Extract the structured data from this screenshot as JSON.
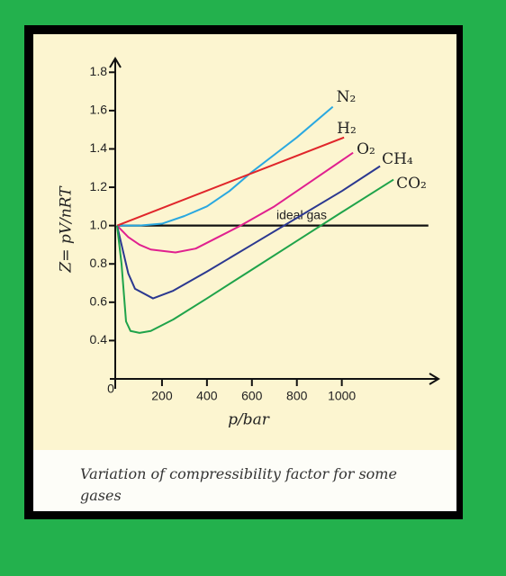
{
  "chart_data": {
    "type": "line",
    "caption": "Variation of compressibility factor for some gases",
    "xlabel": "p/bar",
    "ylabel": "Z= pV/nRT",
    "annotation": "ideal gas",
    "xlim": [
      0,
      1430
    ],
    "ylim": [
      0.2,
      1.9
    ],
    "xticks": [
      0,
      200,
      400,
      600,
      800,
      1000
    ],
    "yticks": [
      {
        "value": 0.4,
        "label": "0.4"
      },
      {
        "value": 0.6,
        "label": "0.6"
      },
      {
        "value": 0.8,
        "label": "0.8"
      },
      {
        "value": 1,
        "label": "1.0"
      },
      {
        "value": 1.2,
        "label": "1.2"
      },
      {
        "value": 1.4,
        "label": "1.4"
      },
      {
        "value": 1.6,
        "label": "1.6"
      },
      {
        "value": 1.8,
        "label": "1.8"
      }
    ],
    "ideal": {
      "x": [
        0,
        1385
      ],
      "values": [
        1,
        1
      ],
      "color": "#111111"
    },
    "series": [
      {
        "name": "N₂",
        "color": "#2aa8e0",
        "x": [
          0,
          100,
          200,
          300,
          400,
          500,
          600,
          700,
          800,
          960
        ],
        "values": [
          1,
          1,
          1.01,
          1.05,
          1.1,
          1.18,
          1.28,
          1.37,
          1.46,
          1.62
        ]
      },
      {
        "name": "H₂",
        "color": "#e0262b",
        "x": [
          0,
          1010
        ],
        "values": [
          1,
          1.46
        ]
      },
      {
        "name": "O₂",
        "color": "#e0208f",
        "x": [
          0,
          50,
          100,
          150,
          260,
          350,
          450,
          550,
          700,
          850,
          1050
        ],
        "values": [
          1,
          0.94,
          0.9,
          0.875,
          0.86,
          0.88,
          0.94,
          1,
          1.1,
          1.22,
          1.38
        ]
      },
      {
        "name": "CH₄",
        "color": "#2b3890",
        "x": [
          0,
          20,
          50,
          80,
          160,
          250,
          400,
          600,
          800,
          1000,
          1170
        ],
        "values": [
          1,
          0.9,
          0.75,
          0.67,
          0.62,
          0.66,
          0.76,
          0.9,
          1.04,
          1.18,
          1.31
        ]
      },
      {
        "name": "CO₂",
        "color": "#1fa34a",
        "x": [
          0,
          20,
          40,
          60,
          100,
          150,
          250,
          400,
          600,
          800,
          1000,
          1230
        ],
        "values": [
          1,
          0.8,
          0.5,
          0.45,
          0.44,
          0.45,
          0.51,
          0.62,
          0.77,
          0.92,
          1.07,
          1.24
        ]
      }
    ]
  }
}
